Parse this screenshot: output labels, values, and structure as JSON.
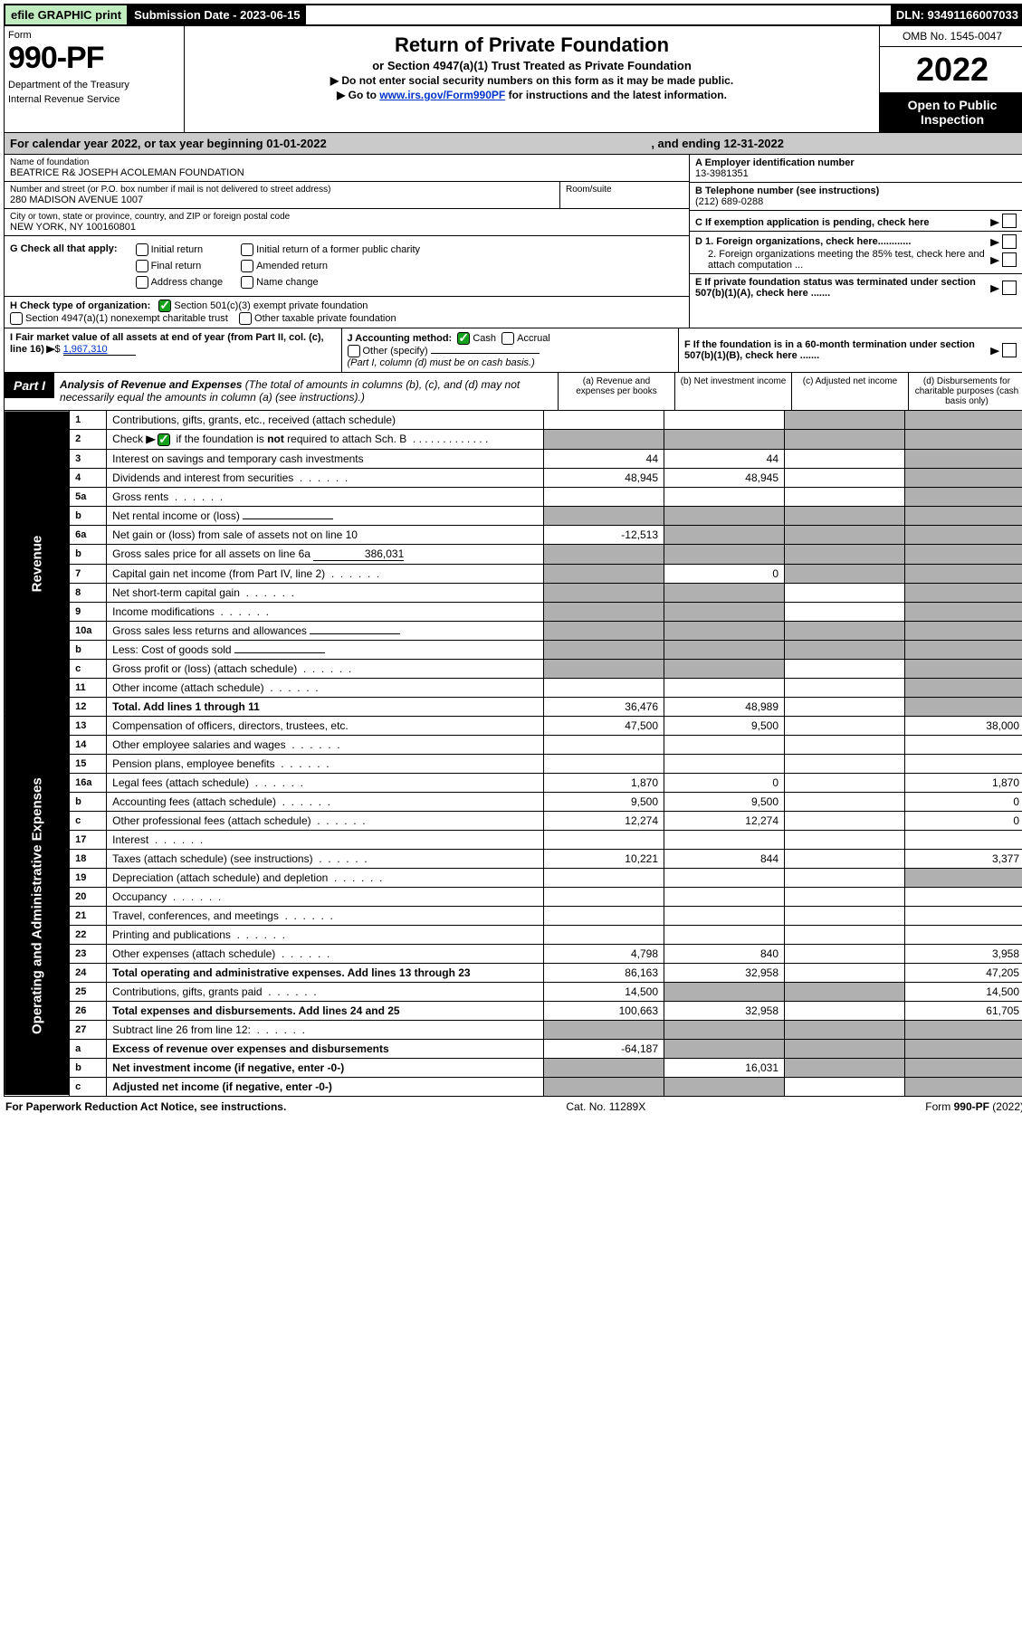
{
  "topbar": {
    "efile": "efile GRAPHIC print",
    "subdate_label": "Submission Date - 2023-06-15",
    "dln": "DLN: 93491166007033"
  },
  "header": {
    "form_label": "Form",
    "form_num": "990-PF",
    "dept1": "Department of the Treasury",
    "dept2": "Internal Revenue Service",
    "title": "Return of Private Foundation",
    "subtitle": "or Section 4947(a)(1) Trust Treated as Private Foundation",
    "note1": "▶ Do not enter social security numbers on this form as it may be made public.",
    "note2_pre": "▶ Go to ",
    "note2_link": "www.irs.gov/Form990PF",
    "note2_post": " for instructions and the latest information.",
    "omb": "OMB No. 1545-0047",
    "year": "2022",
    "open": "Open to Public Inspection"
  },
  "calendar": {
    "text_a": "For calendar year 2022, or tax year beginning 01-01-2022",
    "text_b": ", and ending 12-31-2022"
  },
  "info": {
    "name_label": "Name of foundation",
    "name": "BEATRICE R& JOSEPH ACOLEMAN FOUNDATION",
    "addr_label": "Number and street (or P.O. box number if mail is not delivered to street address)",
    "addr": "280 MADISON AVENUE 1007",
    "room_label": "Room/suite",
    "city_label": "City or town, state or province, country, and ZIP or foreign postal code",
    "city": "NEW YORK, NY  100160801",
    "A_label": "A Employer identification number",
    "A_val": "13-3981351",
    "B_label": "B Telephone number (see instructions)",
    "B_val": "(212) 689-0288",
    "C_label": "C If exemption application is pending, check here",
    "D1_label": "D 1. Foreign organizations, check here............",
    "D2_label": "2. Foreign organizations meeting the 85% test, check here and attach computation ...",
    "E_label": "E  If private foundation status was terminated under section 507(b)(1)(A), check here .......",
    "F_label": "F  If the foundation is in a 60-month termination under section 507(b)(1)(B), check here .......",
    "G_label": "G Check all that apply:",
    "G_opts": [
      "Initial return",
      "Final return",
      "Address change",
      "Initial return of a former public charity",
      "Amended return",
      "Name change"
    ],
    "H_label": "H Check type of organization:",
    "H_opt1": "Section 501(c)(3) exempt private foundation",
    "H_opt2": "Section 4947(a)(1) nonexempt charitable trust",
    "H_opt3": "Other taxable private foundation",
    "I_label": "I Fair market value of all assets at end of year (from Part II, col. (c), line 16)",
    "I_val": "1,967,310",
    "J_label": "J Accounting method:",
    "J_cash": "Cash",
    "J_accrual": "Accrual",
    "J_other": "Other (specify)",
    "J_note": "(Part I, column (d) must be on cash basis.)"
  },
  "part1": {
    "tab": "Part I",
    "title_bold": "Analysis of Revenue and Expenses",
    "title_rest": " (The total of amounts in columns (b), (c), and (d) may not necessarily equal the amounts in column (a) (see instructions).)",
    "col_a": "(a)   Revenue and expenses per books",
    "col_b": "(b)   Net investment income",
    "col_c": "(c)   Adjusted net income",
    "col_d": "(d)  Disbursements for charitable purposes (cash basis only)"
  },
  "sections": {
    "revenue": "Revenue",
    "expenses": "Operating and Administrative Expenses"
  },
  "rows": [
    {
      "n": "1",
      "label": "Contributions, gifts, grants, etc., received (attach schedule)",
      "a": "",
      "b": "",
      "c": "shade",
      "d": "shade"
    },
    {
      "n": "2",
      "label": "Check ▶ ☑ if the foundation is not required to attach Sch. B",
      "a": "shade",
      "b": "shade",
      "c": "shade",
      "d": "shade",
      "special": "check"
    },
    {
      "n": "3",
      "label": "Interest on savings and temporary cash investments",
      "a": "44",
      "b": "44",
      "c": "",
      "d": "shade"
    },
    {
      "n": "4",
      "label": "Dividends and interest from securities",
      "a": "48,945",
      "b": "48,945",
      "c": "",
      "d": "shade"
    },
    {
      "n": "5a",
      "label": "Gross rents",
      "a": "",
      "b": "",
      "c": "",
      "d": "shade"
    },
    {
      "n": "b",
      "label": "Net rental income or (loss)",
      "a": "shade",
      "b": "shade",
      "c": "shade",
      "d": "shade",
      "inline": true
    },
    {
      "n": "6a",
      "label": "Net gain or (loss) from sale of assets not on line 10",
      "a": "-12,513",
      "b": "shade",
      "c": "shade",
      "d": "shade"
    },
    {
      "n": "b",
      "label": "Gross sales price for all assets on line 6a",
      "a": "shade",
      "b": "shade",
      "c": "shade",
      "d": "shade",
      "inline": true,
      "inline_val": "386,031"
    },
    {
      "n": "7",
      "label": "Capital gain net income (from Part IV, line 2)",
      "a": "shade",
      "b": "0",
      "c": "shade",
      "d": "shade"
    },
    {
      "n": "8",
      "label": "Net short-term capital gain",
      "a": "shade",
      "b": "shade",
      "c": "",
      "d": "shade"
    },
    {
      "n": "9",
      "label": "Income modifications",
      "a": "shade",
      "b": "shade",
      "c": "",
      "d": "shade"
    },
    {
      "n": "10a",
      "label": "Gross sales less returns and allowances",
      "a": "shade",
      "b": "shade",
      "c": "shade",
      "d": "shade",
      "inline": true
    },
    {
      "n": "b",
      "label": "Less: Cost of goods sold",
      "a": "shade",
      "b": "shade",
      "c": "shade",
      "d": "shade",
      "inline": true
    },
    {
      "n": "c",
      "label": "Gross profit or (loss) (attach schedule)",
      "a": "shade",
      "b": "shade",
      "c": "",
      "d": "shade"
    },
    {
      "n": "11",
      "label": "Other income (attach schedule)",
      "a": "",
      "b": "",
      "c": "",
      "d": "shade"
    },
    {
      "n": "12",
      "label": "Total. Add lines 1 through 11",
      "a": "36,476",
      "b": "48,989",
      "c": "",
      "d": "shade",
      "bold": true
    }
  ],
  "exp_rows": [
    {
      "n": "13",
      "label": "Compensation of officers, directors, trustees, etc.",
      "a": "47,500",
      "b": "9,500",
      "c": "",
      "d": "38,000"
    },
    {
      "n": "14",
      "label": "Other employee salaries and wages",
      "a": "",
      "b": "",
      "c": "",
      "d": ""
    },
    {
      "n": "15",
      "label": "Pension plans, employee benefits",
      "a": "",
      "b": "",
      "c": "",
      "d": ""
    },
    {
      "n": "16a",
      "label": "Legal fees (attach schedule)",
      "a": "1,870",
      "b": "0",
      "c": "",
      "d": "1,870"
    },
    {
      "n": "b",
      "label": "Accounting fees (attach schedule)",
      "a": "9,500",
      "b": "9,500",
      "c": "",
      "d": "0"
    },
    {
      "n": "c",
      "label": "Other professional fees (attach schedule)",
      "a": "12,274",
      "b": "12,274",
      "c": "",
      "d": "0"
    },
    {
      "n": "17",
      "label": "Interest",
      "a": "",
      "b": "",
      "c": "",
      "d": ""
    },
    {
      "n": "18",
      "label": "Taxes (attach schedule) (see instructions)",
      "a": "10,221",
      "b": "844",
      "c": "",
      "d": "3,377"
    },
    {
      "n": "19",
      "label": "Depreciation (attach schedule) and depletion",
      "a": "",
      "b": "",
      "c": "",
      "d": "shade"
    },
    {
      "n": "20",
      "label": "Occupancy",
      "a": "",
      "b": "",
      "c": "",
      "d": ""
    },
    {
      "n": "21",
      "label": "Travel, conferences, and meetings",
      "a": "",
      "b": "",
      "c": "",
      "d": ""
    },
    {
      "n": "22",
      "label": "Printing and publications",
      "a": "",
      "b": "",
      "c": "",
      "d": ""
    },
    {
      "n": "23",
      "label": "Other expenses (attach schedule)",
      "a": "4,798",
      "b": "840",
      "c": "",
      "d": "3,958"
    },
    {
      "n": "24",
      "label": "Total operating and administrative expenses. Add lines 13 through 23",
      "a": "86,163",
      "b": "32,958",
      "c": "",
      "d": "47,205",
      "bold": true
    },
    {
      "n": "25",
      "label": "Contributions, gifts, grants paid",
      "a": "14,500",
      "b": "shade",
      "c": "shade",
      "d": "14,500"
    },
    {
      "n": "26",
      "label": "Total expenses and disbursements. Add lines 24 and 25",
      "a": "100,663",
      "b": "32,958",
      "c": "",
      "d": "61,705",
      "bold": true
    },
    {
      "n": "27",
      "label": "Subtract line 26 from line 12:",
      "a": "shade",
      "b": "shade",
      "c": "shade",
      "d": "shade"
    },
    {
      "n": "a",
      "label": "Excess of revenue over expenses and disbursements",
      "a": "-64,187",
      "b": "shade",
      "c": "shade",
      "d": "shade",
      "bold": true
    },
    {
      "n": "b",
      "label": "Net investment income (if negative, enter -0-)",
      "a": "shade",
      "b": "16,031",
      "c": "shade",
      "d": "shade",
      "bold": true
    },
    {
      "n": "c",
      "label": "Adjusted net income (if negative, enter -0-)",
      "a": "shade",
      "b": "shade",
      "c": "",
      "d": "shade",
      "bold": true
    }
  ],
  "footer": {
    "left": "For Paperwork Reduction Act Notice, see instructions.",
    "mid": "Cat. No. 11289X",
    "right": "Form 990-PF (2022)"
  },
  "colors": {
    "shade": "#b0b0b0",
    "green": "#15a11b",
    "link": "#0033cc"
  }
}
